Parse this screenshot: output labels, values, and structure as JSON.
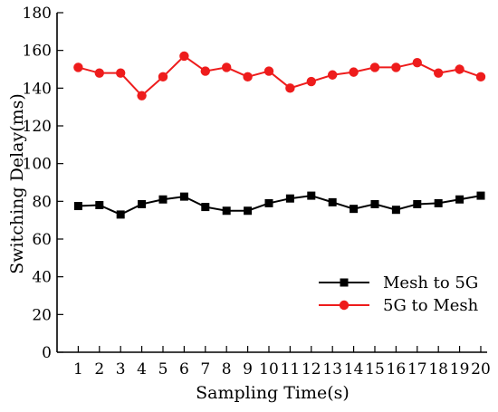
{
  "chart_data": {
    "type": "line",
    "title": "",
    "xlabel": "Sampling Time(s)",
    "ylabel": "Switching Delay(ms)",
    "x": [
      1,
      2,
      3,
      4,
      5,
      6,
      7,
      8,
      9,
      10,
      11,
      12,
      13,
      14,
      15,
      16,
      17,
      18,
      19,
      20
    ],
    "x_tick_labels": [
      "1",
      "2",
      "3",
      "4",
      "5",
      "6",
      "7",
      "8",
      "9",
      "10",
      "11",
      "12",
      "13",
      "14",
      "15",
      "16",
      "17",
      "18",
      "19",
      "20"
    ],
    "xlim": [
      0,
      20.3
    ],
    "ylim": [
      0,
      180
    ],
    "y_ticks": [
      0,
      20,
      40,
      60,
      80,
      100,
      120,
      140,
      160,
      180
    ],
    "y_tick_labels": [
      "0",
      "20",
      "40",
      "60",
      "80",
      "100",
      "120",
      "140",
      "160",
      "180"
    ],
    "grid": false,
    "legend_position": "bottom-right",
    "series": [
      {
        "name": "Mesh to 5G",
        "color": "#000000",
        "marker": "square",
        "values": [
          77.5,
          78,
          73,
          78.5,
          81,
          82.5,
          77,
          75,
          75,
          79,
          81.5,
          83,
          79.5,
          76,
          78.5,
          75.5,
          78.5,
          79,
          81,
          83
        ]
      },
      {
        "name": "5G to Mesh",
        "color": "#ee1c1c",
        "marker": "circle",
        "values": [
          151,
          148,
          148,
          136,
          146,
          157,
          149,
          151,
          146,
          149,
          140,
          143.5,
          147,
          148.5,
          151,
          151,
          153.5,
          148,
          150,
          146
        ]
      }
    ]
  }
}
